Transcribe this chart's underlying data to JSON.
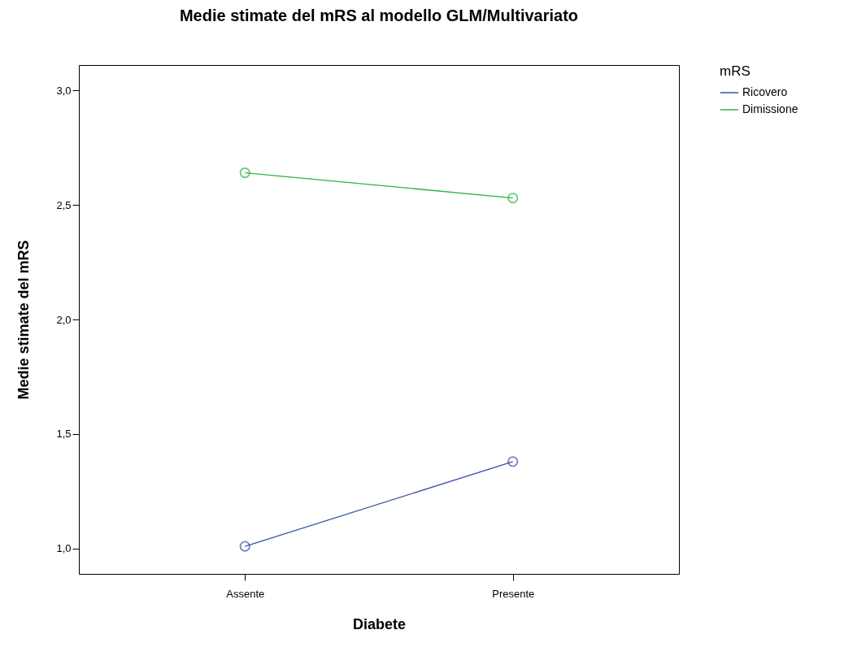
{
  "chart_data": {
    "type": "line",
    "title": "Medie stimate del mRS al modello GLM/Multivariato",
    "xlabel": "Diabete",
    "ylabel": "Medie stimate del mRS",
    "legend_title": "mRS",
    "categories": [
      "Assente",
      "Presente"
    ],
    "series": [
      {
        "name": "Ricovero",
        "color": "#3c50a8",
        "values": [
          1.01,
          1.38
        ]
      },
      {
        "name": "Dimissione",
        "color": "#2eb33e",
        "values": [
          2.64,
          2.53
        ]
      }
    ],
    "ylim": [
      0.89,
      3.11
    ],
    "yticks": [
      {
        "value": 1,
        "label": "1,0"
      },
      {
        "value": 1.5,
        "label": "1,5"
      },
      {
        "value": 2,
        "label": "2,0"
      },
      {
        "value": 2.5,
        "label": "2,5"
      },
      {
        "value": 3,
        "label": "3,0"
      }
    ],
    "grid": false,
    "legend": "top right",
    "marker": "circle",
    "line_style": "solid"
  }
}
